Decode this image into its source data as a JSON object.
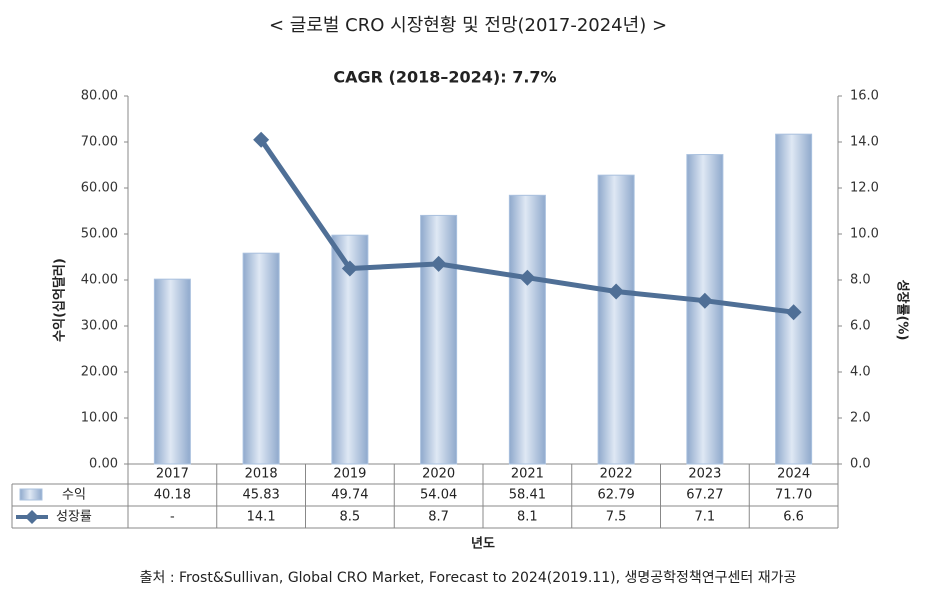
{
  "header": {
    "title": "< 글로벌 CRO 시장현황 및 전망(2017-2024년) >"
  },
  "chart_data": {
    "type": "bar-line",
    "title": "CAGR (2018–2024): 7.7%",
    "categories": [
      "2017",
      "2018",
      "2019",
      "2020",
      "2021",
      "2022",
      "2023",
      "2024"
    ],
    "series": [
      {
        "name": "수익",
        "color": "#a9c0de",
        "values": [
          40.18,
          45.83,
          49.74,
          54.04,
          58.41,
          62.79,
          67.27,
          71.7
        ],
        "value_labels": [
          "40.18",
          "45.83",
          "49.74",
          "54.04",
          "58.41",
          "62.79",
          "67.27",
          "71.70"
        ]
      },
      {
        "name": "성장률",
        "color": "#4f6f96",
        "axis": "y2",
        "values": [
          null,
          14.1,
          8.5,
          8.7,
          8.1,
          7.5,
          7.1,
          6.6
        ],
        "value_labels": [
          "-",
          "14.1",
          "8.5",
          "8.7",
          "8.1",
          "7.5",
          "7.1",
          "6.6"
        ]
      }
    ],
    "y_label": "수익(십억달러)",
    "y2_label": "성장률(%)",
    "x_label": "년도",
    "ylim": [
      0,
      80
    ],
    "yticks": [
      {
        "value": 0,
        "label": "0.00"
      },
      {
        "value": 10,
        "label": "10.00"
      },
      {
        "value": 20,
        "label": "20.00"
      },
      {
        "value": 30,
        "label": "30.00"
      },
      {
        "value": 40,
        "label": "40.00"
      },
      {
        "value": 50,
        "label": "50.00"
      },
      {
        "value": 60,
        "label": "60.00"
      },
      {
        "value": 70,
        "label": "70.00"
      },
      {
        "value": 80,
        "label": "80.00"
      }
    ],
    "y2lim": [
      0,
      16
    ],
    "y2ticks": [
      {
        "value": 0,
        "label": "0.0"
      },
      {
        "value": 2,
        "label": "2.0"
      },
      {
        "value": 4,
        "label": "4.0"
      },
      {
        "value": 6,
        "label": "6.0"
      },
      {
        "value": 8,
        "label": "8.0"
      },
      {
        "value": 10,
        "label": "10.0"
      },
      {
        "value": 12,
        "label": "12.0"
      },
      {
        "value": 14,
        "label": "14.0"
      },
      {
        "value": 16,
        "label": "16.0"
      }
    ],
    "grid": false
  },
  "footer": {
    "source": "출처 : Frost&Sullivan, Global CRO Market, Forecast to 2024(2019.11), 생명공학정책연구센터 재가공"
  }
}
